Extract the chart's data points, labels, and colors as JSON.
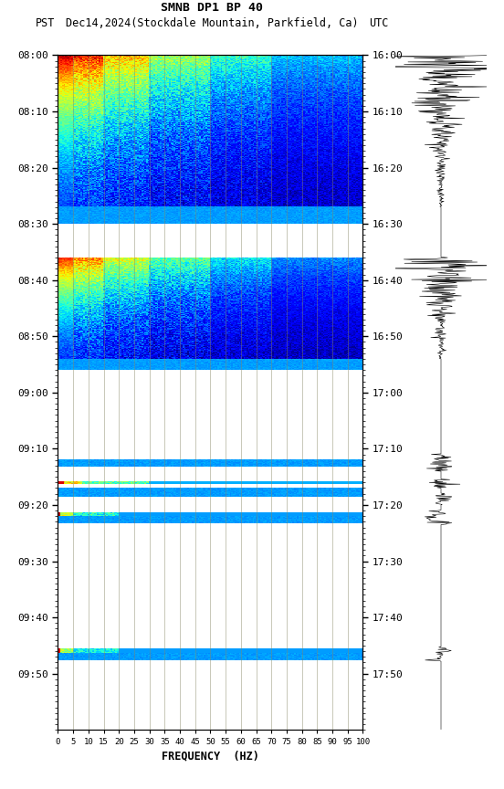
{
  "title_line1": "SMNB DP1 BP 40",
  "title_line2_left": "PST",
  "title_line2_mid": "Dec14,2024(Stockdale Mountain, Parkfield, Ca)",
  "title_line2_right": "UTC",
  "xlabel": "FREQUENCY  (HZ)",
  "freq_ticks": [
    0,
    5,
    10,
    15,
    20,
    25,
    30,
    35,
    40,
    45,
    50,
    55,
    60,
    65,
    70,
    75,
    80,
    85,
    90,
    95,
    100
  ],
  "left_time_labels": [
    "08:00",
    "08:10",
    "08:20",
    "08:30",
    "08:40",
    "08:50",
    "09:00",
    "09:10",
    "09:20",
    "09:30",
    "09:40",
    "09:50"
  ],
  "right_time_labels": [
    "16:00",
    "16:10",
    "16:20",
    "16:30",
    "16:40",
    "16:50",
    "17:00",
    "17:10",
    "17:20",
    "17:30",
    "17:40",
    "17:50"
  ],
  "fig_width": 5.52,
  "fig_height": 8.64,
  "dpi": 100,
  "bg_color": "#ffffff",
  "grid_color": "#888866",
  "dark_blue": "#0000AA",
  "medium_blue": "#0000CC"
}
